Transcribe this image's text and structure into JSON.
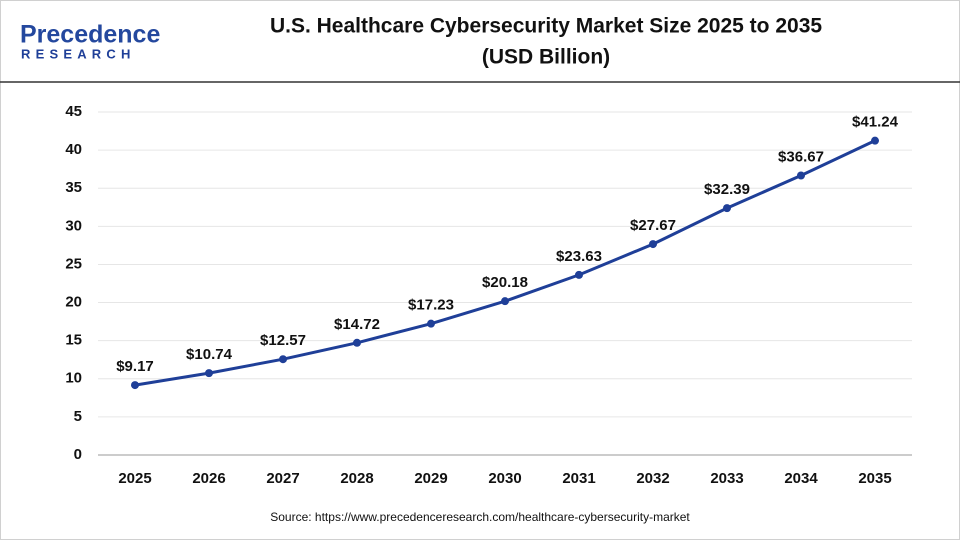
{
  "logo": {
    "name": "Precedence",
    "tagline": "RESEARCH"
  },
  "chart_data": {
    "type": "line",
    "title": "U.S. Healthcare Cybersecurity Market Size 2025 to 2035",
    "subtitle": "(USD Billion)",
    "categories": [
      "2025",
      "2026",
      "2027",
      "2028",
      "2029",
      "2030",
      "2031",
      "2032",
      "2033",
      "2034",
      "2035"
    ],
    "values": [
      9.17,
      10.74,
      12.57,
      14.72,
      17.23,
      20.18,
      23.63,
      27.67,
      32.39,
      36.67,
      41.24
    ],
    "value_labels": [
      "$9.17",
      "$10.74",
      "$12.57",
      "$14.72",
      "$17.23",
      "$20.18",
      "$23.63",
      "$27.67",
      "$32.39",
      "$36.67",
      "$41.24"
    ],
    "color": "#1f3f98",
    "ylim": [
      0,
      45
    ],
    "yticks": [
      0,
      5,
      10,
      15,
      20,
      25,
      30,
      35,
      40,
      45
    ],
    "grid": true,
    "source": "Source: https://www.precedenceresearch.com/healthcare-cybersecurity-market"
  }
}
